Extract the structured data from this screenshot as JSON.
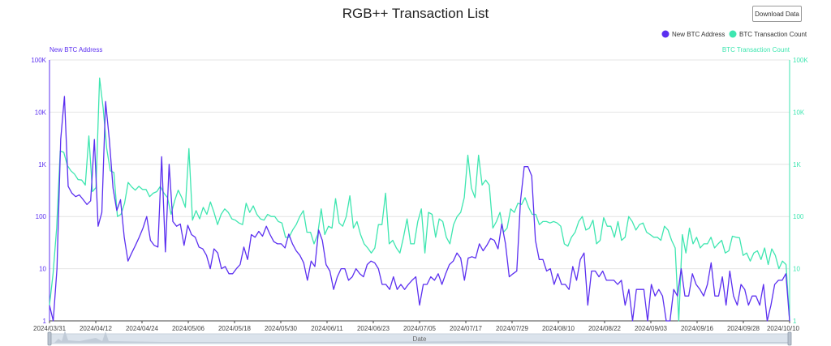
{
  "page": {
    "title": "RGB++ Transaction List",
    "download_label": "Download Data"
  },
  "chart_data": {
    "type": "line",
    "title": "RGB++ Transaction List",
    "xlabel": "Date",
    "y_left_label": "New BTC Address",
    "y_right_label": "BTC Transaction Count",
    "y_scale": "log",
    "ylim": [
      1,
      100000
    ],
    "y_ticks": [
      "1",
      "10",
      "100",
      "1K",
      "10K",
      "100K"
    ],
    "x_tick_labels": [
      "2024/03/31",
      "2024/04/12",
      "2024/04/24",
      "2024/05/06",
      "2024/05/18",
      "2024/05/30",
      "2024/06/11",
      "2024/06/23",
      "2024/07/05",
      "2024/07/17",
      "2024/07/29",
      "2024/08/10",
      "2024/08/22",
      "2024/09/03",
      "2024/09/16",
      "2024/09/28",
      "2024/10/10"
    ],
    "x_start": "2024-03-31",
    "x_end": "2024-10-10",
    "grid": true,
    "legend_position": "top-right",
    "colors": {
      "series1": "#5b2ff0",
      "series2": "#3ee6b0",
      "grid": "#e4e4e4",
      "slider": "#dbe3ec"
    },
    "series": [
      {
        "name": "New BTC Address",
        "axis": "left",
        "values": [
          2,
          1,
          10,
          3000,
          20000,
          380,
          280,
          240,
          260,
          210,
          170,
          200,
          3000,
          65,
          120,
          16000,
          3000,
          350,
          130,
          210,
          40,
          14,
          20,
          28,
          40,
          60,
          100,
          35,
          28,
          26,
          1400,
          21,
          1000,
          80,
          65,
          72,
          28,
          68,
          45,
          40,
          26,
          24,
          18,
          10,
          24,
          20,
          10,
          11,
          8,
          8,
          10,
          12,
          26,
          15,
          45,
          40,
          52,
          42,
          65,
          45,
          33,
          30,
          30,
          25,
          46,
          30,
          22,
          18,
          13,
          6,
          14,
          11,
          55,
          35,
          12,
          9,
          4,
          7,
          10,
          10,
          6,
          7,
          10,
          8,
          7,
          12,
          14,
          13,
          10,
          5,
          5,
          4,
          7,
          4,
          5,
          4,
          5,
          6,
          7,
          2,
          5,
          5,
          7,
          6,
          8,
          5,
          8,
          12,
          14,
          20,
          16,
          6,
          16,
          17,
          16,
          30,
          22,
          28,
          38,
          35,
          24,
          72,
          30,
          7,
          8,
          9,
          200,
          900,
          900,
          600,
          35,
          15,
          15,
          9,
          10,
          5,
          8,
          5,
          5,
          4,
          11,
          6,
          15,
          20,
          2,
          9,
          9,
          7,
          9,
          6,
          6,
          6,
          5,
          6,
          2,
          4,
          1,
          4,
          4,
          4,
          1,
          5,
          3,
          4,
          3,
          1,
          1,
          4,
          3,
          10,
          3,
          3,
          8,
          5,
          4,
          3,
          5,
          13,
          3,
          3,
          7,
          2,
          9,
          3,
          2,
          5,
          4,
          2,
          3,
          3,
          2,
          5,
          1,
          2,
          5,
          6,
          6,
          8,
          1
        ]
      },
      {
        "name": "BTC Transaction Count",
        "axis": "right",
        "values": [
          2,
          8,
          60,
          1800,
          1700,
          950,
          750,
          650,
          510,
          500,
          400,
          3500,
          300,
          360,
          45000,
          12000,
          2000,
          750,
          700,
          100,
          110,
          180,
          450,
          370,
          320,
          380,
          330,
          330,
          240,
          280,
          300,
          380,
          280,
          230,
          110,
          200,
          320,
          230,
          150,
          2000,
          85,
          130,
          90,
          150,
          110,
          190,
          120,
          70,
          110,
          140,
          120,
          90,
          85,
          75,
          70,
          180,
          120,
          160,
          110,
          90,
          85,
          110,
          100,
          100,
          80,
          75,
          40,
          40,
          55,
          70,
          100,
          130,
          50,
          50,
          30,
          45,
          140,
          45,
          65,
          60,
          220,
          75,
          65,
          100,
          250,
          60,
          80,
          45,
          30,
          25,
          20,
          25,
          70,
          70,
          280,
          30,
          35,
          25,
          20,
          40,
          90,
          30,
          30,
          80,
          140,
          20,
          120,
          110,
          40,
          90,
          80,
          40,
          30,
          70,
          100,
          120,
          230,
          1500,
          350,
          230,
          1500,
          400,
          500,
          400,
          60,
          80,
          120,
          50,
          60,
          140,
          120,
          180,
          170,
          230,
          150,
          110,
          110,
          70,
          80,
          80,
          75,
          80,
          75,
          65,
          30,
          27,
          40,
          50,
          80,
          100,
          55,
          60,
          85,
          30,
          35,
          95,
          65,
          65,
          40,
          80,
          35,
          40,
          100,
          80,
          55,
          70,
          75,
          50,
          45,
          40,
          40,
          35,
          65,
          55,
          35,
          25,
          1,
          45,
          20,
          60,
          30,
          40,
          25,
          30,
          30,
          40,
          25,
          30,
          35,
          20,
          22,
          42,
          40,
          39,
          18,
          20,
          14,
          20,
          22,
          15,
          25,
          12,
          24,
          18,
          10,
          14,
          12,
          1
        ]
      }
    ]
  }
}
